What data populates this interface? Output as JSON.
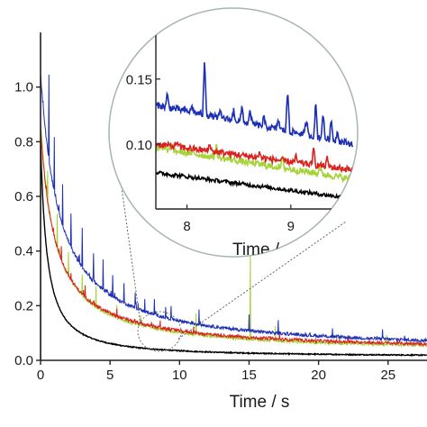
{
  "chart_data": {
    "type": "line",
    "xlabel": "Time / s",
    "ylabel": "",
    "xlim": [
      0,
      27.8
    ],
    "ylim": [
      0,
      1.2
    ],
    "x_ticks": [
      0,
      5,
      10,
      15,
      20,
      25
    ],
    "y_ticks": [
      0.0,
      0.2,
      0.4,
      0.6,
      0.8,
      1.0
    ],
    "grid": false,
    "legend": "none",
    "series": [
      {
        "color": "#1c2fb5",
        "y0": 1.05,
        "tail": 0.03,
        "a": 0.7,
        "c": 1.05,
        "spikes": [
          [
            0.6,
            0.3
          ],
          [
            1.0,
            0.2
          ],
          [
            1.6,
            0.15
          ],
          [
            2.2,
            0.12
          ],
          [
            3.0,
            0.14
          ],
          [
            3.8,
            0.1
          ],
          [
            4.5,
            0.11
          ],
          [
            5.2,
            0.08
          ],
          [
            6.0,
            0.07
          ],
          [
            6.8,
            0.06
          ],
          [
            7.5,
            0.05
          ],
          [
            8.2,
            0.06
          ],
          [
            9.0,
            0.04
          ],
          [
            9.4,
            0.05
          ],
          [
            11.4,
            0.05
          ],
          [
            15.0,
            0.06
          ],
          [
            17.1,
            0.05
          ],
          [
            21.0,
            0.03
          ],
          [
            24.6,
            0.03
          ],
          [
            26.2,
            0.02
          ]
        ]
      },
      {
        "color": "#d9231f",
        "y0": 0.85,
        "tail": 0.03,
        "a": 0.95,
        "c": 1.0,
        "spikes": [
          [
            1.5,
            0.05
          ],
          [
            3.2,
            0.04
          ],
          [
            5.5,
            0.03
          ],
          [
            8.6,
            0.03
          ],
          [
            11.0,
            0.02
          ],
          [
            17.2,
            0.02
          ],
          [
            22.1,
            0.02
          ]
        ]
      },
      {
        "color": "#a6d23a",
        "y0": 0.88,
        "tail": 0.025,
        "a": 1.0,
        "c": 1.0,
        "spikes": [
          [
            0.5,
            0.1
          ],
          [
            1.2,
            0.12
          ],
          [
            2.0,
            0.09
          ],
          [
            3.0,
            0.08
          ],
          [
            4.0,
            0.07
          ],
          [
            5.5,
            0.05
          ],
          [
            7.2,
            0.04
          ],
          [
            11.2,
            0.08
          ],
          [
            15.1,
            0.34
          ],
          [
            16.9,
            0.05
          ],
          [
            21.3,
            0.03
          ],
          [
            24.9,
            0.03
          ]
        ]
      },
      {
        "color": "#000000",
        "y0": 0.8,
        "tail": 0.012,
        "a": 1.8,
        "c": 1.2,
        "spikes": []
      }
    ],
    "inset": {
      "xlim": [
        7.7,
        9.6
      ],
      "ylim": [
        0.05,
        0.19
      ],
      "x_ticks": [
        8,
        9
      ],
      "y_ticks": [
        0.1,
        0.15
      ],
      "y_tick_labels": [
        "0.10",
        "0.15"
      ],
      "xlabel_visible": "Time /",
      "callout_range": [
        7.7,
        9.6
      ],
      "series": [
        {
          "color": "#1c2fb5",
          "start": 0.13,
          "end": 0.1,
          "spikes": [
            [
              7.81,
              0.01
            ],
            [
              8.05,
              0.005
            ],
            [
              8.17,
              0.043
            ],
            [
              8.32,
              0.004
            ],
            [
              8.45,
              0.008
            ],
            [
              8.53,
              0.012
            ],
            [
              8.61,
              0.01
            ],
            [
              8.74,
              0.007
            ],
            [
              8.88,
              0.008
            ],
            [
              8.97,
              0.032
            ],
            [
              9.15,
              0.012
            ],
            [
              9.24,
              0.026
            ],
            [
              9.31,
              0.02
            ],
            [
              9.39,
              0.015
            ],
            [
              9.45,
              0.008
            ]
          ]
        },
        {
          "color": "#d9231f",
          "start": 0.1,
          "end": 0.08,
          "spikes": [
            [
              7.9,
              0.004
            ],
            [
              8.22,
              0.006
            ],
            [
              8.7,
              0.004
            ],
            [
              9.05,
              0.004
            ],
            [
              9.22,
              0.012
            ],
            [
              9.35,
              0.006
            ]
          ]
        },
        {
          "color": "#a6d23a",
          "start": 0.097,
          "end": 0.073,
          "spikes": [
            [
              7.85,
              0.004
            ],
            [
              8.28,
              0.01
            ],
            [
              8.92,
              0.008
            ],
            [
              9.28,
              0.006
            ]
          ]
        },
        {
          "color": "#000000",
          "start": 0.078,
          "end": 0.058,
          "spikes": []
        }
      ]
    }
  }
}
